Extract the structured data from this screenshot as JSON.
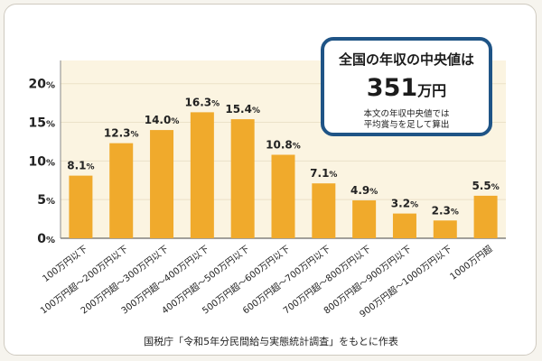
{
  "chart_data": {
    "type": "bar",
    "categories": [
      "100万円以下",
      "100万円超〜200万円以下",
      "200万円超〜300万円以下",
      "300万円超〜400万円以下",
      "400万円超〜500万円以下",
      "500万円超〜600万円以下",
      "600万円超〜700万円以下",
      "700万円超〜800万円以下",
      "800万円超〜900万円以下",
      "900万円超〜1000万円以下",
      "1000万円超"
    ],
    "values": [
      8.1,
      12.3,
      14.0,
      16.3,
      15.4,
      10.8,
      7.1,
      4.9,
      3.2,
      2.3,
      5.5
    ],
    "value_labels": [
      "8.1",
      "12.3",
      "14.0",
      "16.3",
      "15.4",
      "10.8",
      "7.1",
      "4.9",
      "3.2",
      "2.3",
      "5.5"
    ],
    "value_unit": "%",
    "y_ticks": [
      "0",
      "5",
      "10",
      "15",
      "20"
    ],
    "y_tick_values": [
      0,
      5,
      10,
      15,
      20
    ],
    "ylim": [
      0,
      23
    ],
    "grid": true,
    "title": "",
    "xlabel": "",
    "ylabel": ""
  },
  "callout": {
    "title": "全国の年収の中央値は",
    "value": "351",
    "unit": "万円",
    "note": "本文の年収中央値では\n平均賞与を足して算出"
  },
  "source": "国税庁「令和5年分民間給与実態統計調査」をもとに作表",
  "colors": {
    "bar": "#f0aa2c",
    "plot_bg": "#fbf4e1",
    "grid": "#ebe1c8",
    "callout_border": "#1f5486"
  }
}
